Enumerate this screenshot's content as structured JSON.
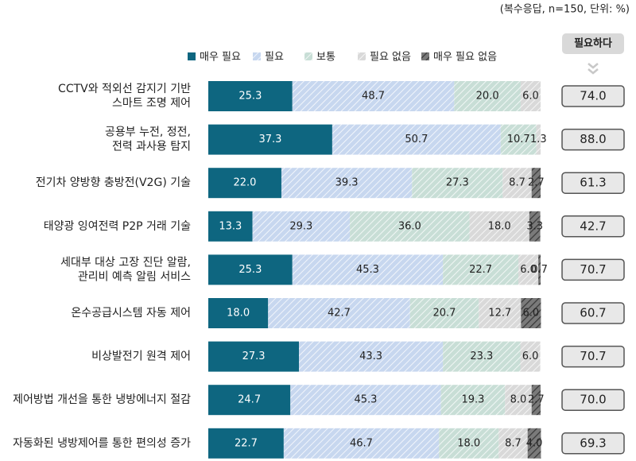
{
  "chart_data": {
    "type": "stacked_bar_horizontal",
    "note": "(복수응답, n=150, 단위: %)",
    "categories": [
      [
        "CCTV와 적외선 감지기 기반",
        "스마트 조명 제어"
      ],
      [
        "공용부 누전, 정전,",
        "전력 과사용 탐지"
      ],
      [
        "전기차 양방향 충방전(V2G) 기술"
      ],
      [
        "태양광 잉여전력 P2P 거래 기술"
      ],
      [
        "세대부 대상 고장 진단 알람,",
        "관리비 예측 알림 서비스"
      ],
      [
        "온수공급시스템 자동 제어"
      ],
      [
        "비상발전기 원격 제어"
      ],
      [
        "제어방법 개선을 통한 냉방에너지 절감"
      ],
      [
        "자동화된 냉방제어를 통한 편의성 증가"
      ]
    ],
    "xlim": [
      0,
      100
    ],
    "series": [
      {
        "name": "매우 필요",
        "color": "#0e6680",
        "pattern": false,
        "values": [
          25.3,
          37.3,
          22.0,
          13.3,
          25.3,
          18.0,
          27.3,
          24.7,
          22.7
        ],
        "value_labels": [
          "25.3",
          "37.3",
          "22.0",
          "13.3",
          "25.3",
          "18.0",
          "27.3",
          "24.7",
          "22.7"
        ]
      },
      {
        "name": "필요",
        "color": "#c7d7ef",
        "pattern": true,
        "values": [
          48.7,
          50.7,
          39.3,
          29.3,
          45.3,
          42.7,
          43.3,
          45.3,
          46.7
        ],
        "value_labels": [
          "48.7",
          "50.7",
          "39.3",
          "29.3",
          "45.3",
          "42.7",
          "43.3",
          "45.3",
          "46.7"
        ]
      },
      {
        "name": "보통",
        "color": "#c8ded6",
        "pattern": true,
        "values": [
          20.0,
          10.7,
          27.3,
          36.0,
          22.7,
          20.7,
          23.3,
          19.3,
          18.0
        ],
        "value_labels": [
          "20.0",
          "10.7",
          "27.3",
          "36.0",
          "22.7",
          "20.7",
          "23.3",
          "19.3",
          "18.0"
        ]
      },
      {
        "name": "필요 없음",
        "color": "#d9d9d9",
        "pattern": true,
        "values": [
          6.0,
          1.3,
          8.7,
          18.0,
          6.0,
          12.7,
          6.0,
          8.0,
          8.7
        ],
        "value_labels": [
          "6.0",
          "1.3",
          "8.7",
          "18.0",
          "6.0",
          "12.7",
          "6.0",
          "8.0",
          "8.7"
        ]
      },
      {
        "name": "매우 필요 없음",
        "color": "#7a7a7a",
        "pattern": true,
        "values": [
          null,
          null,
          2.7,
          3.3,
          0.7,
          6.0,
          null,
          2.7,
          4.0
        ],
        "value_labels": [
          null,
          null,
          "2.7",
          "3.3",
          "0.7",
          "6.0",
          null,
          "2.7",
          "4.0"
        ]
      }
    ],
    "needed": {
      "title": "필요하다",
      "values": [
        74.0,
        88.0,
        61.3,
        42.7,
        70.7,
        60.7,
        70.7,
        70.0,
        69.3
      ],
      "value_labels": [
        "74.0",
        "88.0",
        "61.3",
        "42.7",
        "70.7",
        "60.7",
        "70.7",
        "70.0",
        "69.3"
      ]
    }
  }
}
